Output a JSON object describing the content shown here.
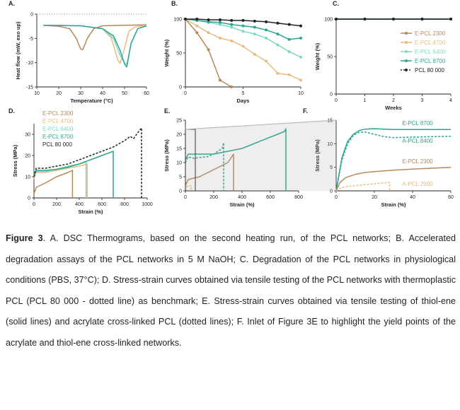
{
  "colors": {
    "E-PCL 2300": "#b8875a",
    "E-PCL 4700": "#e6bd7e",
    "E-PCL 6400": "#7ed8c8",
    "E-PCL 8700": "#2aa690",
    "PCL 80 000": "#222222",
    "A-PCL 8400": "#2aa690",
    "A-PCL 2900": "#e6bd7e"
  },
  "chart_data": [
    {
      "id": "A",
      "panel": "A.",
      "type": "line",
      "xlabel": "Temperature (°C)",
      "ylabel": "Heat flow (mW, exo up)",
      "xlim": [
        10,
        60
      ],
      "ylim": [
        -15,
        0
      ],
      "xticks": [
        "10",
        "20",
        "30",
        "40",
        "50",
        "60"
      ],
      "yticks": [
        "0",
        "-5",
        "-10",
        "-15"
      ],
      "series": [
        {
          "key": "E-PCL 2300",
          "x": [
            13,
            20,
            25,
            28,
            30,
            31,
            33,
            36,
            40,
            50,
            60
          ],
          "y": [
            -2.3,
            -2.5,
            -3.0,
            -5.0,
            -7.2,
            -7.3,
            -5.0,
            -3.0,
            -2.4,
            -2.3,
            -2.2
          ]
        },
        {
          "key": "E-PCL 4700",
          "x": [
            13,
            30,
            40,
            44,
            47,
            48,
            50,
            52,
            55,
            60
          ],
          "y": [
            -2.3,
            -2.4,
            -3.0,
            -5.0,
            -9.5,
            -10.2,
            -7.0,
            -3.5,
            -2.6,
            -2.3
          ]
        },
        {
          "key": "E-PCL 6400",
          "x": [
            13,
            30,
            40,
            45,
            48,
            50,
            51,
            53,
            56,
            60
          ],
          "y": [
            -2.3,
            -2.4,
            -3.0,
            -5.0,
            -8.5,
            -10.0,
            -10.4,
            -6.0,
            -3.0,
            -2.4
          ]
        },
        {
          "key": "E-PCL 8700",
          "x": [
            13,
            30,
            40,
            45,
            48,
            50,
            51,
            53,
            56,
            60
          ],
          "y": [
            -2.3,
            -2.4,
            -3.0,
            -4.5,
            -7.5,
            -10.3,
            -10.9,
            -6.0,
            -3.0,
            -2.4
          ]
        }
      ]
    },
    {
      "id": "B",
      "panel": "B.",
      "type": "line",
      "xlabel": "Days",
      "ylabel": "Weight (%)",
      "xlim": [
        0,
        10
      ],
      "ylim": [
        0,
        100
      ],
      "xticks": [
        "0",
        "5",
        "10"
      ],
      "yticks": [
        "0",
        "50",
        "100"
      ],
      "series": [
        {
          "key": "E-PCL 2300",
          "x": [
            0,
            1,
            2,
            3,
            4
          ],
          "y": [
            100,
            80,
            55,
            10,
            0
          ]
        },
        {
          "key": "E-PCL 4700",
          "x": [
            0,
            1,
            2,
            3,
            4,
            5,
            6,
            7,
            8,
            9,
            10
          ],
          "y": [
            100,
            90,
            80,
            72,
            68,
            60,
            48,
            38,
            20,
            18,
            10
          ]
        },
        {
          "key": "E-PCL 6400",
          "x": [
            0,
            1,
            2,
            3,
            4,
            5,
            6,
            7,
            8,
            9,
            10
          ],
          "y": [
            100,
            98,
            95,
            92,
            88,
            82,
            78,
            72,
            62,
            52,
            44
          ]
        },
        {
          "key": "E-PCL 8700",
          "x": [
            0,
            1,
            2,
            3,
            4,
            5,
            6,
            7,
            8,
            9,
            10
          ],
          "y": [
            100,
            98,
            96,
            95,
            92,
            90,
            88,
            84,
            78,
            70,
            72
          ]
        },
        {
          "key": "PCL 80 000",
          "x": [
            0,
            1,
            2,
            3,
            4,
            5,
            6,
            7,
            8,
            9,
            10
          ],
          "y": [
            100,
            100,
            99,
            99,
            98,
            98,
            97,
            96,
            94,
            92,
            90
          ]
        }
      ]
    },
    {
      "id": "C",
      "panel": "C.",
      "type": "line",
      "xlabel": "Weeks",
      "ylabel": "Weight (%)",
      "xlim": [
        0,
        4
      ],
      "ylim": [
        0,
        100
      ],
      "xticks": [
        "0",
        "1",
        "2",
        "3",
        "4"
      ],
      "yticks": [
        "0",
        "50",
        "100"
      ],
      "legend": [
        "E-PCL 2300",
        "E-PCL 4700",
        "E-PCL 6400",
        "E-PCL 8700",
        "PCL 80 000"
      ],
      "series": [
        {
          "key": "E-PCL 2300",
          "x": [
            0,
            1,
            2,
            3,
            4
          ],
          "y": [
            100,
            100,
            100,
            100,
            100
          ]
        },
        {
          "key": "E-PCL 4700",
          "x": [
            0,
            1,
            2,
            3,
            4
          ],
          "y": [
            100,
            100,
            100,
            100,
            100
          ]
        },
        {
          "key": "E-PCL 6400",
          "x": [
            0,
            1,
            2,
            3,
            4
          ],
          "y": [
            100,
            100,
            100,
            100,
            100
          ]
        },
        {
          "key": "E-PCL 8700",
          "x": [
            0,
            1,
            2,
            3,
            4
          ],
          "y": [
            100,
            100,
            100,
            100,
            100
          ]
        },
        {
          "key": "PCL 80 000",
          "x": [
            0,
            1,
            2,
            3,
            4
          ],
          "y": [
            100,
            100,
            100,
            100,
            100
          ]
        }
      ]
    },
    {
      "id": "D",
      "panel": "D.",
      "type": "line",
      "xlabel": "Strain (%)",
      "ylabel": "Stress (MPa)",
      "xlim": [
        0,
        1000
      ],
      "ylim": [
        0,
        35
      ],
      "xticks": [
        "0",
        "200",
        "400",
        "600",
        "800",
        "1000"
      ],
      "yticks": [
        "0",
        "10",
        "20",
        "30"
      ],
      "legend": [
        "E-PCL 2300",
        "E-PCL 4700",
        "E-PCL 6400",
        "E-PCL 8700",
        "PCL 80 000"
      ],
      "series": [
        {
          "key": "E-PCL 2300",
          "x": [
            0,
            20,
            100,
            200,
            300,
            340,
            340
          ],
          "y": [
            2,
            5,
            7,
            10,
            12,
            13,
            0
          ]
        },
        {
          "key": "E-PCL 4700",
          "x": [
            0,
            20,
            100,
            200,
            300,
            400,
            470,
            470
          ],
          "y": [
            9,
            12,
            12,
            13,
            14,
            15,
            16,
            0
          ]
        },
        {
          "key": "E-PCL 6400",
          "x": [
            0,
            20,
            100,
            200,
            300,
            400,
            460,
            460
          ],
          "y": [
            10,
            12.5,
            12.5,
            13.5,
            15,
            16,
            17,
            0
          ]
        },
        {
          "key": "E-PCL 8700",
          "x": [
            0,
            20,
            100,
            200,
            300,
            400,
            500,
            600,
            700,
            700
          ],
          "y": [
            11,
            13,
            13,
            13.5,
            14.5,
            16,
            18,
            20,
            22,
            0
          ]
        },
        {
          "key": "PCL 80 000",
          "x": [
            0,
            20,
            100,
            200,
            300,
            400,
            500,
            600,
            700,
            800,
            850,
            880,
            920,
            950,
            950
          ],
          "y": [
            10,
            14,
            14,
            15,
            16,
            18,
            20,
            22,
            24,
            27,
            29,
            28,
            31,
            33,
            0
          ],
          "dash": true
        }
      ]
    },
    {
      "id": "E",
      "panel": "E.",
      "type": "line",
      "xlabel": "Strain (%)",
      "ylabel": "Stress (MPa)",
      "xlim": [
        0,
        800
      ],
      "ylim": [
        0,
        25
      ],
      "xticks": [
        "0",
        "200",
        "400",
        "600",
        "800"
      ],
      "yticks": [
        "0",
        "5",
        "10",
        "15",
        "20",
        "25"
      ],
      "series": [
        {
          "key": "E-PCL 2300",
          "x": [
            0,
            20,
            100,
            200,
            300,
            340,
            340
          ],
          "y": [
            2,
            4,
            5,
            7.5,
            10,
            13,
            0
          ]
        },
        {
          "key": "E-PCL 8700",
          "x": [
            0,
            20,
            100,
            200,
            300,
            400,
            500,
            600,
            700,
            710,
            710
          ],
          "y": [
            11,
            13,
            13,
            13,
            14,
            15,
            17,
            19,
            21,
            22,
            0
          ]
        },
        {
          "key": "A-PCL 8400",
          "x": [
            0,
            20,
            60,
            100,
            150,
            200,
            260,
            270,
            270
          ],
          "y": [
            10,
            12,
            11.5,
            11.8,
            12,
            13,
            15,
            17,
            0
          ],
          "dash": true
        },
        {
          "key": "A-PCL 2900",
          "x": [
            0,
            10,
            20,
            40,
            40
          ],
          "y": [
            0,
            1.5,
            1.8,
            1.8,
            0
          ],
          "dash": true
        }
      ]
    },
    {
      "id": "F",
      "panel": "F.",
      "type": "line",
      "xlabel": "Strain (%)",
      "ylabel": "Stress (MPa)",
      "xlim": [
        0,
        60
      ],
      "ylim": [
        0,
        15
      ],
      "xticks": [
        "0",
        "20",
        "40",
        "60"
      ],
      "yticks": [
        "0",
        "5",
        "10",
        "15"
      ],
      "labels": [
        "E-PCL 8700",
        "A-PCL 8400",
        "E-PCL 2300",
        "A-PCL 2900"
      ],
      "series": [
        {
          "key": "E-PCL 8700",
          "x": [
            0,
            3,
            6,
            9,
            12,
            15,
            20,
            25,
            30,
            40,
            50,
            60
          ],
          "y": [
            0,
            7,
            10.5,
            12,
            12.8,
            13.1,
            13.2,
            13.1,
            13.0,
            13.0,
            13.0,
            13.0
          ]
        },
        {
          "key": "A-PCL 8400",
          "x": [
            0,
            3,
            6,
            9,
            12,
            15,
            20,
            25,
            30,
            40,
            50,
            60
          ],
          "y": [
            0,
            6.5,
            10,
            11.8,
            12.4,
            12.5,
            12.0,
            11.5,
            11.3,
            11.4,
            11.5,
            11.6
          ],
          "dash": true
        },
        {
          "key": "E-PCL 2300",
          "x": [
            0,
            2,
            5,
            10,
            15,
            20,
            30,
            40,
            50,
            60
          ],
          "y": [
            0,
            1.8,
            2.8,
            3.5,
            3.9,
            4.1,
            4.4,
            4.6,
            4.8,
            5.0
          ]
        },
        {
          "key": "A-PCL 2900",
          "x": [
            0,
            2,
            5,
            10,
            15,
            20,
            25,
            28,
            28
          ],
          "y": [
            0,
            0.5,
            0.9,
            1.1,
            1.3,
            1.5,
            1.7,
            1.8,
            0
          ],
          "dash": true
        }
      ]
    }
  ],
  "caption": {
    "figure_label": "Figure 3",
    "text": ". A. DSC Thermograms, based on the second heating run, of the PCL networks; B. Accelerated degradation assays of the PCL networks in 5 M NaOH; C. Degradation of the PCL networks in physiological conditions (PBS, 37°C); D. Stress-strain curves obtained via tensile testing of the PCL networks with thermoplastic PCL (PCL 80 000 - dotted line) as benchmark; E. Stress-strain curves obtained via tensile testing of thiol-ene (solid lines) and acrylate cross-linked PCL (dotted lines); F. Inlet of Figure 3E to highlight the yield points of the acrylate and thiol-ene cross-linked networks."
  }
}
